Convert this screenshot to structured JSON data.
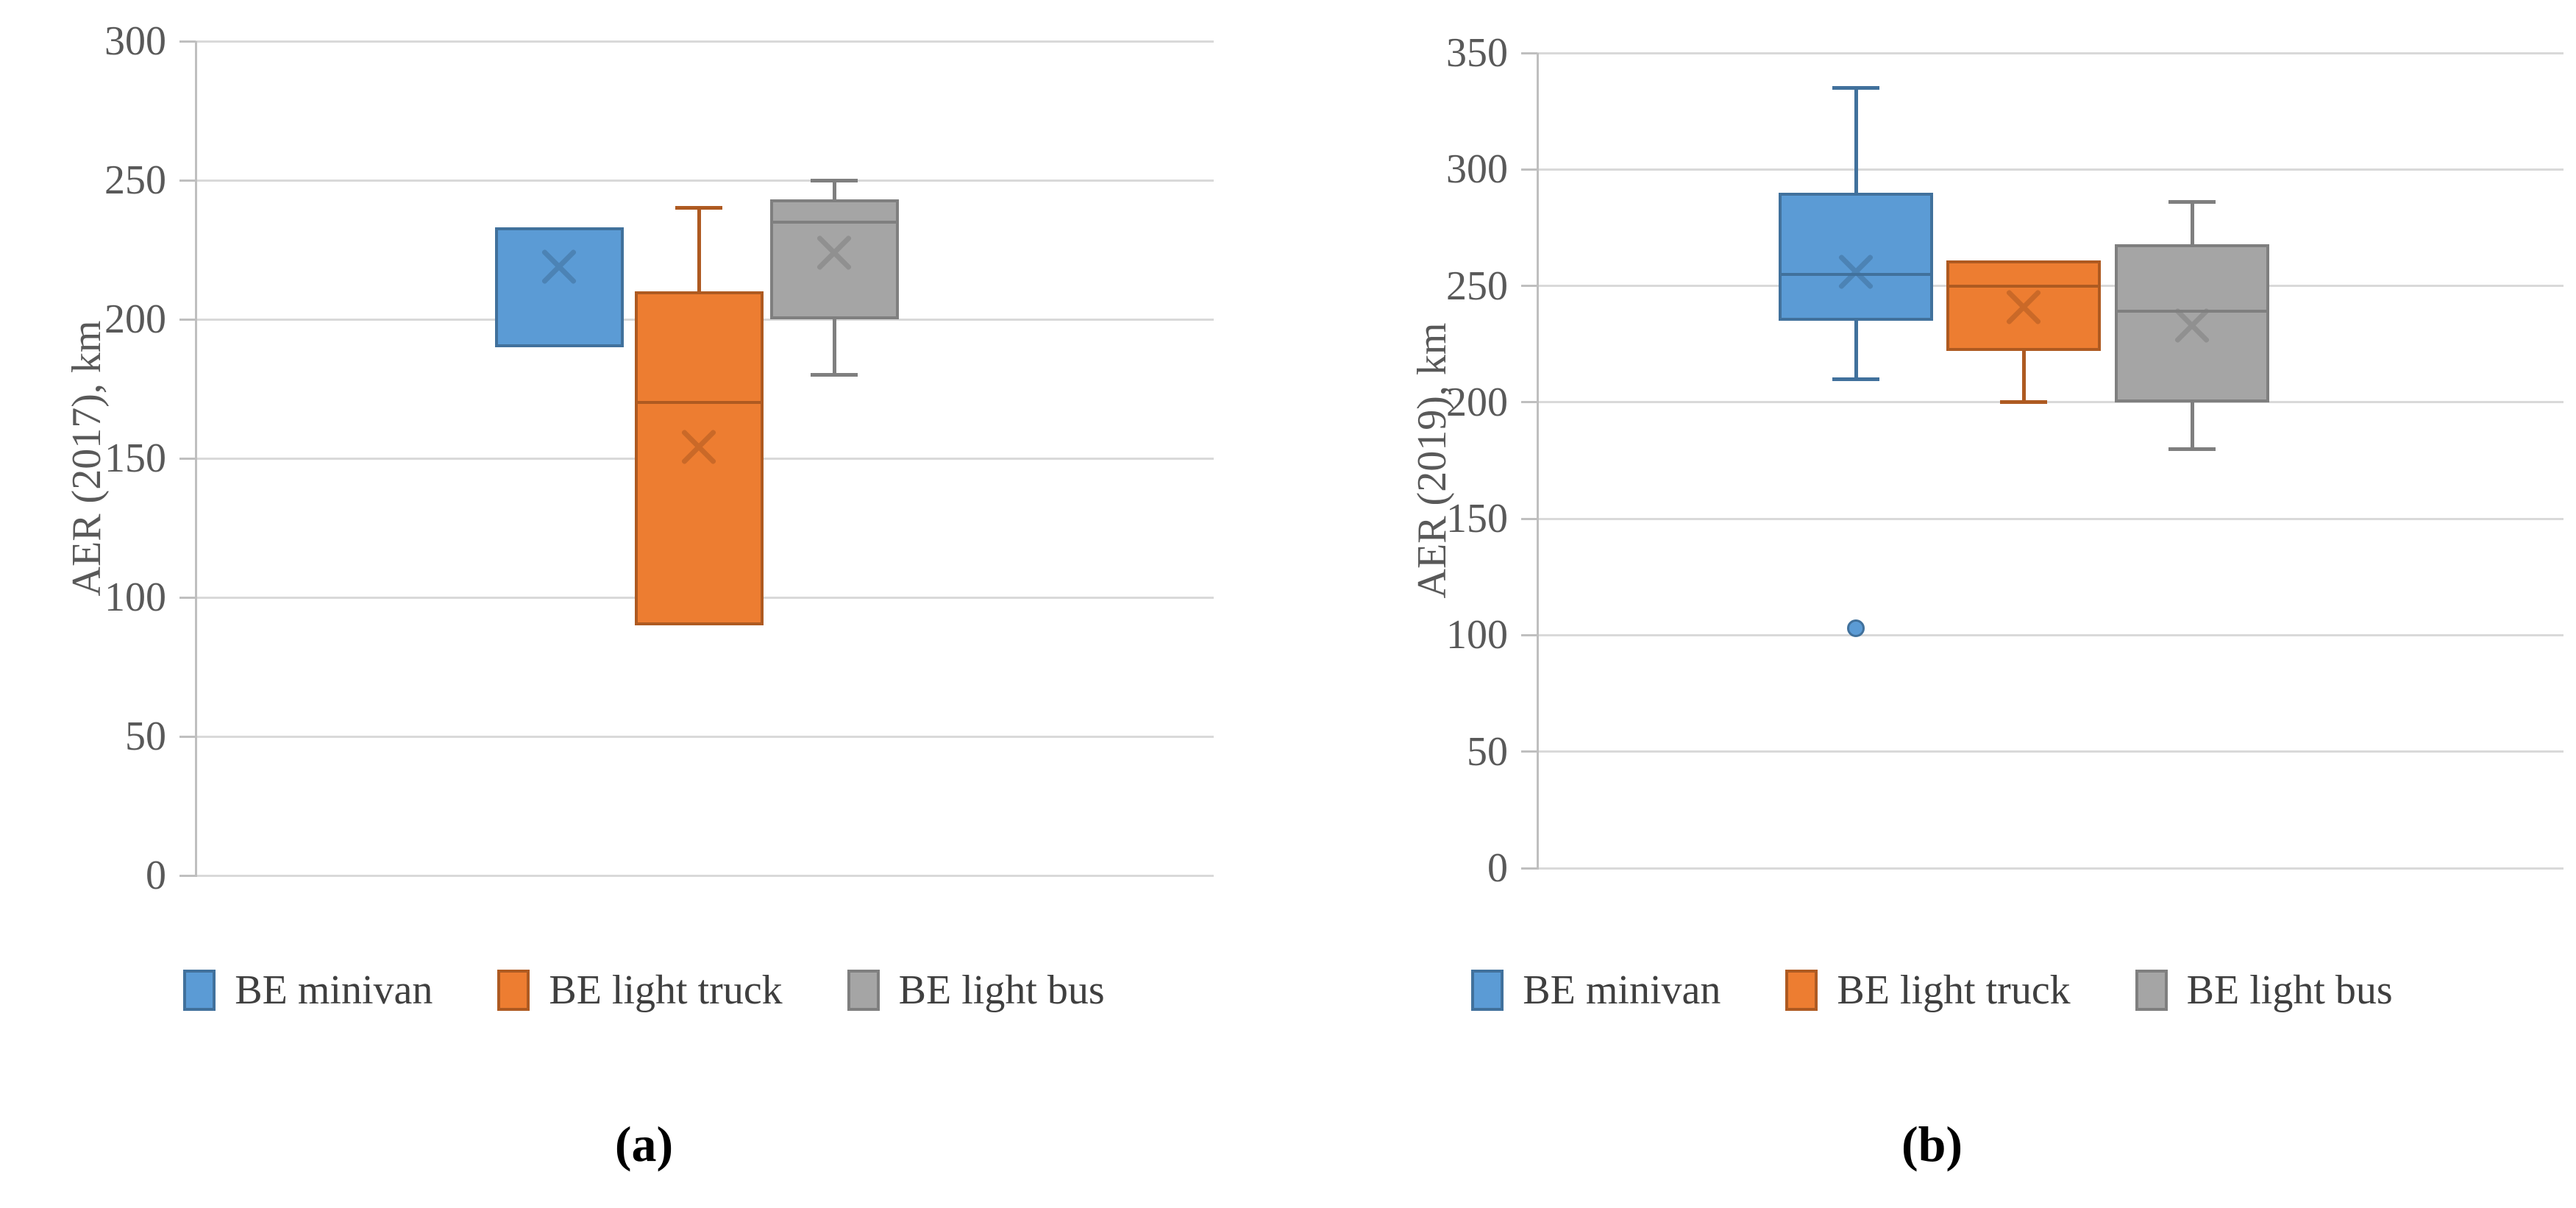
{
  "figure": {
    "background": "#ffffff",
    "legend_labels": [
      "BE minivan",
      "BE light truck",
      "BE light bus"
    ]
  },
  "chart_data": [
    {
      "type": "box",
      "panel": "a",
      "caption": "(a)",
      "ylabel": "AER (2017), km",
      "ylim": [
        0,
        300
      ],
      "yticks": [
        0,
        50,
        100,
        150,
        200,
        250,
        300
      ],
      "grid": true,
      "legend_position": "bottom",
      "series": [
        {
          "name": "BE minivan",
          "fill": "#5B9BD5",
          "stroke": "#41719C",
          "q1": 190,
          "median": null,
          "q3": 233,
          "whisker_low": null,
          "whisker_high": null,
          "mean": 219,
          "outliers": []
        },
        {
          "name": "BE light truck",
          "fill": "#ED7D31",
          "stroke": "#AE5A21",
          "q1": 90,
          "median": 170,
          "q3": 210,
          "whisker_low": null,
          "whisker_high": 240,
          "mean": 154,
          "outliers": []
        },
        {
          "name": "BE light bus",
          "fill": "#A5A5A5",
          "stroke": "#7F7F7F",
          "q1": 200,
          "median": 235,
          "q3": 243,
          "whisker_low": 180,
          "whisker_high": 250,
          "mean": 224,
          "outliers": []
        }
      ]
    },
    {
      "type": "box",
      "panel": "b",
      "caption": "(b)",
      "ylabel": "AER (2019), km",
      "ylim": [
        0,
        350
      ],
      "yticks": [
        0,
        50,
        100,
        150,
        200,
        250,
        300,
        350
      ],
      "grid": true,
      "legend_position": "bottom",
      "series": [
        {
          "name": "BE minivan",
          "fill": "#5B9BD5",
          "stroke": "#41719C",
          "q1": 235,
          "median": 255,
          "q3": 290,
          "whisker_low": 210,
          "whisker_high": 335,
          "mean": 256,
          "outliers": [
            103
          ]
        },
        {
          "name": "BE light truck",
          "fill": "#ED7D31",
          "stroke": "#AE5A21",
          "q1": 222,
          "median": 250,
          "q3": 261,
          "whisker_low": 200,
          "whisker_high": null,
          "mean": 241,
          "outliers": []
        },
        {
          "name": "BE light bus",
          "fill": "#A5A5A5",
          "stroke": "#7F7F7F",
          "q1": 200,
          "median": 239,
          "q3": 268,
          "whisker_low": 180,
          "whisker_high": 286,
          "mean": 233,
          "outliers": []
        }
      ]
    }
  ]
}
